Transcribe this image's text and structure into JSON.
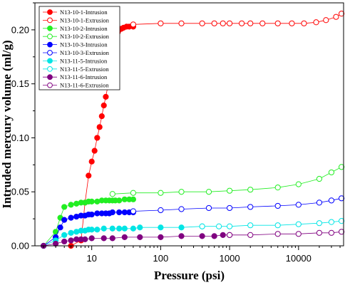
{
  "chart_data": {
    "type": "scatter",
    "xlabel": "Pressure (psi)",
    "ylabel": "Intruded mercury volume (ml/g)",
    "x_scale": "log",
    "xlim": [
      1.5,
      45000
    ],
    "ylim": [
      0,
      0.225
    ],
    "x_ticks": [
      10,
      100,
      1000,
      10000
    ],
    "x_tick_labels": [
      "10",
      "100",
      "1000",
      "10000"
    ],
    "y_ticks": [
      0,
      0.05,
      0.1,
      0.15,
      0.2
    ],
    "y_tick_labels": [
      "0.00",
      "0.05",
      "0.10",
      "0.15",
      "0.20"
    ],
    "legend_position": "top-left",
    "grid": false,
    "series": [
      {
        "name": "N13-10-1-Intrusion",
        "color": "#ff0000",
        "marker": "filled",
        "x": [
          2,
          5,
          7,
          8,
          9,
          10,
          11,
          12,
          13,
          14,
          15,
          16,
          17,
          18,
          19,
          20,
          21,
          22,
          23,
          24,
          25,
          27,
          29,
          32,
          35,
          40
        ],
        "y": [
          0.0,
          0.0,
          0.005,
          0.04,
          0.065,
          0.078,
          0.088,
          0.1,
          0.11,
          0.12,
          0.13,
          0.138,
          0.147,
          0.156,
          0.164,
          0.172,
          0.18,
          0.187,
          0.193,
          0.198,
          0.2,
          0.201,
          0.202,
          0.203,
          0.203,
          0.203
        ]
      },
      {
        "name": "N13-10-1-Extrusion",
        "color": "#ff0000",
        "marker": "open",
        "x": [
          40,
          100,
          200,
          400,
          600,
          800,
          1000,
          1500,
          2000,
          3000,
          5000,
          8000,
          12000,
          18000,
          25000,
          35000,
          42000
        ],
        "y": [
          0.205,
          0.206,
          0.206,
          0.206,
          0.206,
          0.206,
          0.206,
          0.206,
          0.206,
          0.206,
          0.206,
          0.206,
          0.206,
          0.207,
          0.209,
          0.212,
          0.215
        ]
      },
      {
        "name": "N13-10-2-Intrusion",
        "color": "#22ee22",
        "marker": "filled",
        "x": [
          2,
          3,
          3.5,
          4,
          5,
          6,
          7,
          8,
          9,
          10,
          12,
          14,
          16,
          18,
          20,
          22,
          25,
          30,
          35,
          40
        ],
        "y": [
          0.0,
          0.013,
          0.026,
          0.036,
          0.038,
          0.039,
          0.04,
          0.04,
          0.041,
          0.041,
          0.041,
          0.042,
          0.042,
          0.042,
          0.042,
          0.042,
          0.042,
          0.043,
          0.043,
          0.043
        ]
      },
      {
        "name": "N13-10-2-Extrusion",
        "color": "#22ee22",
        "marker": "open",
        "x": [
          20,
          40,
          100,
          200,
          500,
          1000,
          2000,
          5000,
          10000,
          20000,
          30000,
          42000
        ],
        "y": [
          0.048,
          0.049,
          0.049,
          0.05,
          0.05,
          0.051,
          0.052,
          0.054,
          0.057,
          0.062,
          0.068,
          0.073
        ]
      },
      {
        "name": "N13-10-3-Intrusion",
        "color": "#0000ff",
        "marker": "filled",
        "x": [
          2,
          3,
          3.5,
          4,
          5,
          6,
          7,
          8,
          9,
          10,
          12,
          14,
          16,
          18,
          20,
          25,
          30,
          35,
          40
        ],
        "y": [
          0.0,
          0.008,
          0.017,
          0.024,
          0.026,
          0.027,
          0.028,
          0.028,
          0.029,
          0.029,
          0.03,
          0.03,
          0.03,
          0.03,
          0.031,
          0.031,
          0.031,
          0.031,
          0.031
        ]
      },
      {
        "name": "N13-10-3-Extrusion",
        "color": "#0000ff",
        "marker": "open",
        "x": [
          40,
          100,
          200,
          500,
          1000,
          2000,
          5000,
          10000,
          20000,
          30000,
          42000
        ],
        "y": [
          0.032,
          0.033,
          0.034,
          0.035,
          0.035,
          0.036,
          0.037,
          0.038,
          0.04,
          0.042,
          0.044
        ]
      },
      {
        "name": "N13-11-5-Intrusion",
        "color": "#00e5e5",
        "marker": "filled",
        "x": [
          2,
          3,
          4,
          5,
          6,
          7,
          8,
          9,
          10,
          12,
          15,
          20,
          25,
          30,
          40,
          50,
          100,
          200,
          400
        ],
        "y": [
          0.0,
          0.005,
          0.01,
          0.012,
          0.013,
          0.014,
          0.014,
          0.015,
          0.015,
          0.015,
          0.016,
          0.016,
          0.016,
          0.016,
          0.016,
          0.017,
          0.017,
          0.017,
          0.018
        ]
      },
      {
        "name": "N13-11-5-Extrusion",
        "color": "#00e5e5",
        "marker": "open",
        "x": [
          400,
          700,
          1000,
          2000,
          5000,
          10000,
          20000,
          30000,
          42000
        ],
        "y": [
          0.018,
          0.018,
          0.018,
          0.019,
          0.019,
          0.02,
          0.021,
          0.022,
          0.023
        ]
      },
      {
        "name": "N13-11-6-Intrusion",
        "color": "#800080",
        "marker": "filled",
        "x": [
          2,
          3,
          4,
          5,
          6,
          7,
          8,
          10,
          15,
          20,
          30,
          50,
          100,
          200,
          400,
          600,
          800,
          1000
        ],
        "y": [
          0.0,
          0.002,
          0.004,
          0.005,
          0.006,
          0.006,
          0.006,
          0.007,
          0.007,
          0.007,
          0.008,
          0.008,
          0.008,
          0.009,
          0.009,
          0.009,
          0.01,
          0.01
        ]
      },
      {
        "name": "N13-11-6-Extrusion",
        "color": "#800080",
        "marker": "open",
        "x": [
          1000,
          2000,
          5000,
          10000,
          20000,
          30000,
          42000
        ],
        "y": [
          0.01,
          0.01,
          0.011,
          0.011,
          0.012,
          0.012,
          0.013
        ]
      }
    ]
  }
}
